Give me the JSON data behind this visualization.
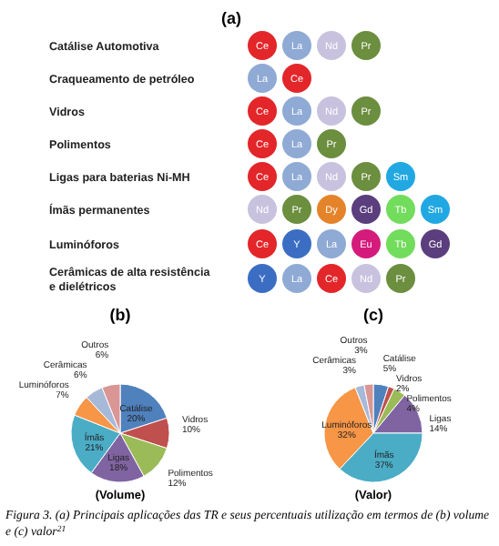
{
  "chart_data": [
    {
      "type": "other",
      "title": "(a)",
      "categories": [
        "Catálise Automotiva",
        "Craqueamento de petróleo",
        "Vidros",
        "Polimentos",
        "Ligas para baterias Ni-MH",
        "Ímãs permanentes",
        "Luminóforos",
        "Cerâmicas de alta resistência e dielétricos"
      ],
      "cell_labels": [
        [
          "Ce",
          "La",
          "Nd",
          "Pr"
        ],
        [
          "La",
          "Ce"
        ],
        [
          "Ce",
          "La",
          "Nd",
          "Pr"
        ],
        [
          "Ce",
          "La",
          "Pr"
        ],
        [
          "Ce",
          "La",
          "Nd",
          "Pr",
          "Sm"
        ],
        [
          "Nd",
          "Pr",
          "Dy",
          "Gd",
          "Tb",
          "Sm"
        ],
        [
          "Ce",
          "Y",
          "La",
          "Eu",
          "Tb",
          "Gd"
        ],
        [
          "Y",
          "La",
          "Ce",
          "Nd",
          "Pr"
        ]
      ],
      "colors": [
        [
          "#e3262a",
          "#8faad4",
          "#c8c2df",
          "#6b8e3f"
        ],
        [
          "#8faad4",
          "#e3262a"
        ],
        [
          "#e3262a",
          "#8faad4",
          "#c8c2df",
          "#6b8e3f"
        ],
        [
          "#e3262a",
          "#8faad4",
          "#6b8e3f"
        ],
        [
          "#e3262a",
          "#8faad4",
          "#c8c2df",
          "#6b8e3f",
          "#21a8e2"
        ],
        [
          "#c8c2df",
          "#6b8e3f",
          "#e5832b",
          "#5b3e7d",
          "#72dc5c",
          "#21a8e2"
        ],
        [
          "#e3262a",
          "#3b6ec3",
          "#8faad4",
          "#d41b7b",
          "#72dc5c",
          "#5b3e7d"
        ],
        [
          "#3b6ec3",
          "#8faad4",
          "#e3262a",
          "#c8c2df",
          "#6b8e3f"
        ]
      ]
    },
    {
      "type": "pie",
      "title": "(b)",
      "categories": [
        "Catálise",
        "Vidros",
        "Polimentos",
        "Ligas",
        "Ímãs",
        "Luminóforos",
        "Cerâmicas",
        "Outros"
      ],
      "values": [
        20,
        10,
        12,
        18,
        21,
        7,
        6,
        6
      ],
      "value_labels": [
        "20%",
        "10%",
        "12%",
        "18%",
        "21%",
        "7%",
        "6%",
        "6%"
      ],
      "colors": [
        "#4f81bd",
        "#c0504d",
        "#9bbb59",
        "#8064a2",
        "#4bacc6",
        "#f79646",
        "#a7b9d8",
        "#d99694"
      ],
      "annotations": [
        "(Volume)"
      ]
    },
    {
      "type": "pie",
      "title": "(c)",
      "categories": [
        "Catálise",
        "Vidros",
        "Polimentos",
        "Ligas",
        "Ímãs",
        "Luminóforos",
        "Cerâmicas",
        "Outros"
      ],
      "values": [
        5,
        2,
        4,
        14,
        37,
        32,
        3,
        3
      ],
      "value_labels": [
        "5%",
        "2%",
        "4%",
        "14%",
        "37%",
        "32%",
        "3%",
        "3%"
      ],
      "colors": [
        "#4f81bd",
        "#c0504d",
        "#9bbb59",
        "#8064a2",
        "#4bacc6",
        "#f79646",
        "#a7b9d8",
        "#d99694"
      ],
      "annotations": [
        "(Valor)",
        "Figura 3. (a) Principais aplicações das TR e seus percentuais utilização em termos de (b) volume e (c) valor$^{21}$"
      ]
    }
  ]
}
